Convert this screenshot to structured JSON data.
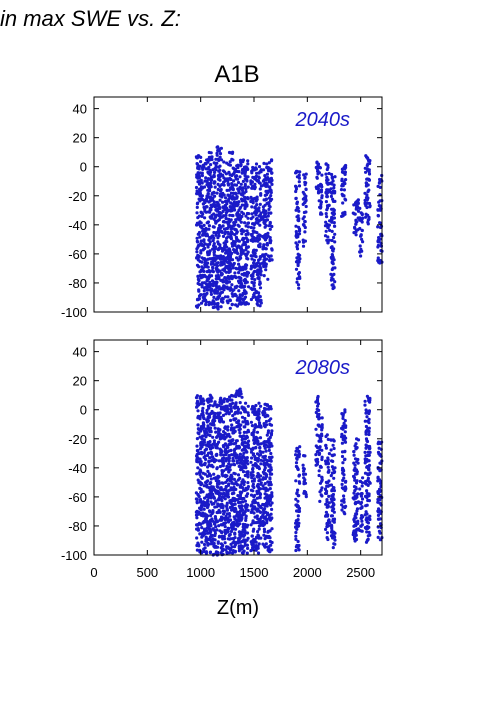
{
  "header_text": "in max SWE vs. Z:",
  "colors": {
    "points": "#1a1ac8",
    "axis": "#000000"
  },
  "chart_data": [
    {
      "type": "scatter",
      "title": "A1B",
      "annotation": "2040s",
      "xlabel": "",
      "ylabel": "",
      "xlim": [
        0,
        2700
      ],
      "ylim": [
        -100,
        48
      ],
      "y_ticks": [
        -100,
        -80,
        -60,
        -40,
        -20,
        0,
        20,
        40
      ],
      "y_tick_labels": [
        "-100",
        "-80",
        "-60",
        "-40",
        "-20",
        "0",
        "20",
        "40"
      ],
      "x_ticks": [
        0,
        500,
        1000,
        1500,
        2000,
        2500
      ],
      "x_tick_labels": [],
      "grid": false,
      "legend": "none",
      "point_bands": [
        {
          "x": [
            960,
            1010
          ],
          "y": [
            -97,
            8
          ]
        },
        {
          "x": [
            1010,
            1080
          ],
          "y": [
            -95,
            5
          ]
        },
        {
          "x": [
            1080,
            1150
          ],
          "y": [
            -97,
            10
          ]
        },
        {
          "x": [
            1150,
            1210
          ],
          "y": [
            -98,
            14
          ]
        },
        {
          "x": [
            1210,
            1270
          ],
          "y": [
            -97,
            5
          ]
        },
        {
          "x": [
            1270,
            1330
          ],
          "y": [
            -98,
            10
          ]
        },
        {
          "x": [
            1330,
            1390
          ],
          "y": [
            -96,
            5
          ]
        },
        {
          "x": [
            1390,
            1450
          ],
          "y": [
            -95,
            5
          ]
        },
        {
          "x": [
            1470,
            1520
          ],
          "y": [
            -92,
            3
          ]
        },
        {
          "x": [
            1520,
            1570
          ],
          "y": [
            -97,
            2
          ]
        },
        {
          "x": [
            1580,
            1630
          ],
          "y": [
            -78,
            3
          ]
        },
        {
          "x": [
            1630,
            1670
          ],
          "y": [
            -65,
            5
          ]
        },
        {
          "x": [
            1890,
            1930
          ],
          "y": [
            -85,
            -2
          ]
        },
        {
          "x": [
            1960,
            1990
          ],
          "y": [
            -58,
            -5
          ]
        },
        {
          "x": [
            2080,
            2110
          ],
          "y": [
            -20,
            8
          ]
        },
        {
          "x": [
            2110,
            2140
          ],
          "y": [
            -35,
            2
          ]
        },
        {
          "x": [
            2170,
            2210
          ],
          "y": [
            -55,
            2
          ]
        },
        {
          "x": [
            2220,
            2260
          ],
          "y": [
            -85,
            -5
          ]
        },
        {
          "x": [
            2320,
            2360
          ],
          "y": [
            -35,
            5
          ]
        },
        {
          "x": [
            2430,
            2480
          ],
          "y": [
            -48,
            -20
          ]
        },
        {
          "x": [
            2490,
            2520
          ],
          "y": [
            -65,
            -28
          ]
        },
        {
          "x": [
            2540,
            2590
          ],
          "y": [
            -40,
            10
          ]
        },
        {
          "x": [
            2660,
            2700
          ],
          "y": [
            -68,
            -6
          ]
        }
      ]
    },
    {
      "type": "scatter",
      "title": "",
      "annotation": "2080s",
      "xlabel": "Z(m)",
      "ylabel": "",
      "xlim": [
        0,
        2700
      ],
      "ylim": [
        -100,
        48
      ],
      "y_ticks": [
        -100,
        -80,
        -60,
        -40,
        -20,
        0,
        20,
        40
      ],
      "y_tick_labels": [
        "-100",
        "-80",
        "-60",
        "-40",
        "-20",
        "0",
        "20",
        "40"
      ],
      "x_ticks": [
        0,
        500,
        1000,
        1500,
        2000,
        2500
      ],
      "x_tick_labels": [
        "0",
        "500",
        "1000",
        "1500",
        "2000",
        "2500"
      ],
      "grid": false,
      "legend": "none",
      "point_bands": [
        {
          "x": [
            960,
            1010
          ],
          "y": [
            -100,
            10
          ]
        },
        {
          "x": [
            1010,
            1080
          ],
          "y": [
            -99,
            8
          ]
        },
        {
          "x": [
            1080,
            1150
          ],
          "y": [
            -100,
            10
          ]
        },
        {
          "x": [
            1150,
            1210
          ],
          "y": [
            -100,
            10
          ]
        },
        {
          "x": [
            1210,
            1270
          ],
          "y": [
            -99,
            8
          ]
        },
        {
          "x": [
            1270,
            1330
          ],
          "y": [
            -100,
            10
          ]
        },
        {
          "x": [
            1330,
            1390
          ],
          "y": [
            -99,
            15
          ]
        },
        {
          "x": [
            1390,
            1450
          ],
          "y": [
            -100,
            5
          ]
        },
        {
          "x": [
            1470,
            1520
          ],
          "y": [
            -97,
            5
          ]
        },
        {
          "x": [
            1520,
            1570
          ],
          "y": [
            -99,
            5
          ]
        },
        {
          "x": [
            1580,
            1630
          ],
          "y": [
            -95,
            5
          ]
        },
        {
          "x": [
            1630,
            1670
          ],
          "y": [
            -98,
            5
          ]
        },
        {
          "x": [
            1890,
            1930
          ],
          "y": [
            -97,
            -25
          ]
        },
        {
          "x": [
            1960,
            1990
          ],
          "y": [
            -60,
            -30
          ]
        },
        {
          "x": [
            2080,
            2110
          ],
          "y": [
            -40,
            10
          ]
        },
        {
          "x": [
            2110,
            2140
          ],
          "y": [
            -65,
            -5
          ]
        },
        {
          "x": [
            2170,
            2210
          ],
          "y": [
            -90,
            -15
          ]
        },
        {
          "x": [
            2220,
            2260
          ],
          "y": [
            -95,
            -20
          ]
        },
        {
          "x": [
            2320,
            2360
          ],
          "y": [
            -72,
            0
          ]
        },
        {
          "x": [
            2430,
            2480
          ],
          "y": [
            -92,
            -20
          ]
        },
        {
          "x": [
            2490,
            2520
          ],
          "y": [
            -85,
            -45
          ]
        },
        {
          "x": [
            2540,
            2590
          ],
          "y": [
            -92,
            10
          ]
        },
        {
          "x": [
            2660,
            2700
          ],
          "y": [
            -90,
            -22
          ]
        }
      ]
    }
  ]
}
